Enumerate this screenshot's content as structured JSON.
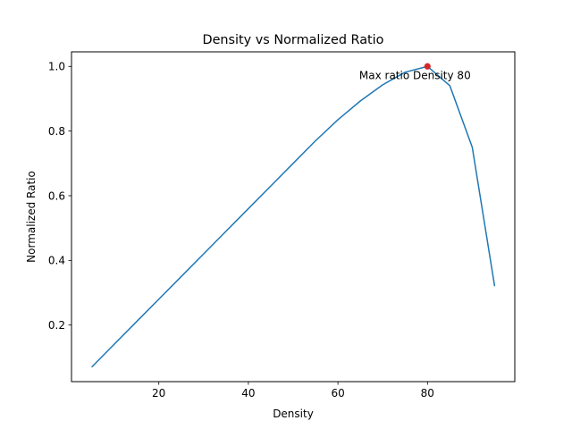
{
  "chart_data": {
    "type": "line",
    "title": "Density vs Normalized Ratio",
    "xlabel": "Density",
    "ylabel": "Normalized Ratio",
    "xlim": [
      0.5,
      99.5
    ],
    "ylim": [
      0.025,
      1.045
    ],
    "x_ticks": [
      20,
      40,
      60,
      80
    ],
    "y_ticks": [
      0.2,
      0.4,
      0.6,
      0.8,
      1.0
    ],
    "x_tick_labels": [
      "20",
      "40",
      "60",
      "80"
    ],
    "y_tick_labels": [
      "0.2",
      "0.4",
      "0.6",
      "0.8",
      "1.0"
    ],
    "grid": false,
    "series": [
      {
        "color": "#1f77b4",
        "x": [
          5,
          10,
          15,
          20,
          25,
          30,
          35,
          40,
          45,
          50,
          55,
          60,
          65,
          70,
          75,
          80,
          85,
          90,
          95
        ],
        "y": [
          0.07,
          0.14,
          0.21,
          0.28,
          0.35,
          0.42,
          0.49,
          0.56,
          0.63,
          0.7,
          0.77,
          0.835,
          0.893,
          0.943,
          0.982,
          1.0,
          0.94,
          0.75,
          0.32
        ]
      }
    ],
    "highlight": {
      "x": 80,
      "y": 1.0,
      "color": "#d62728"
    },
    "annotation": {
      "text": "Max ratio Density 80",
      "x": 80,
      "y": 1.0
    }
  }
}
